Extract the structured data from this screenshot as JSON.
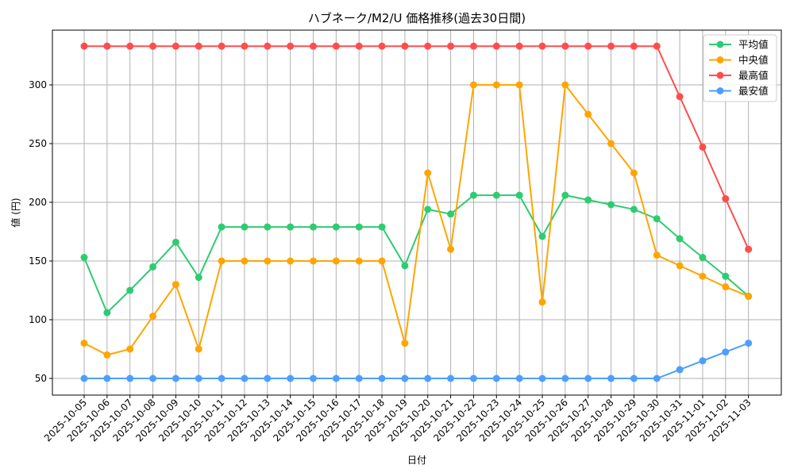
{
  "chart_data": {
    "type": "line",
    "title": "ハブネーク/M2/U 価格推移(過去30日間)",
    "xlabel": "日付",
    "ylabel": "値 (円)",
    "ylim": [
      35,
      345
    ],
    "yticks": [
      50,
      100,
      150,
      200,
      250,
      300
    ],
    "grid": true,
    "legend_position": "upper right",
    "x": [
      "2025-10-05",
      "2025-10-06",
      "2025-10-07",
      "2025-10-08",
      "2025-10-09",
      "2025-10-10",
      "2025-10-11",
      "2025-10-12",
      "2025-10-13",
      "2025-10-14",
      "2025-10-15",
      "2025-10-16",
      "2025-10-17",
      "2025-10-18",
      "2025-10-19",
      "2025-10-20",
      "2025-10-21",
      "2025-10-22",
      "2025-10-23",
      "2025-10-24",
      "2025-10-25",
      "2025-10-26",
      "2025-10-27",
      "2025-10-28",
      "2025-10-29",
      "2025-10-30",
      "2025-10-31",
      "2025-11-01",
      "2025-11-02",
      "2025-11-03"
    ],
    "series": [
      {
        "name": "平均値",
        "color": "#2ecc71",
        "values": [
          153,
          106,
          125,
          145,
          166,
          136,
          179,
          179,
          179,
          179,
          179,
          179,
          179,
          179,
          146,
          194,
          190,
          206,
          206,
          206,
          171,
          206,
          202,
          198,
          194,
          186,
          169,
          153,
          137,
          120
        ]
      },
      {
        "name": "中央値",
        "color": "#ffa500",
        "values": [
          80,
          70,
          75,
          103,
          130,
          75,
          150,
          150,
          150,
          150,
          150,
          150,
          150,
          150,
          80,
          225,
          160,
          300,
          300,
          300,
          115,
          300,
          275,
          250,
          225,
          155,
          146,
          137,
          128,
          120
        ]
      },
      {
        "name": "最高値",
        "color": "#ff4d4d",
        "values": [
          333,
          333,
          333,
          333,
          333,
          333,
          333,
          333,
          333,
          333,
          333,
          333,
          333,
          333,
          333,
          333,
          333,
          333,
          333,
          333,
          333,
          333,
          333,
          333,
          333,
          333,
          290,
          247,
          203,
          160
        ]
      },
      {
        "name": "最安値",
        "color": "#4d9fff",
        "values": [
          50,
          50,
          50,
          50,
          50,
          50,
          50,
          50,
          50,
          50,
          50,
          50,
          50,
          50,
          50,
          50,
          50,
          50,
          50,
          50,
          50,
          50,
          50,
          50,
          50,
          50,
          57.5,
          65,
          72.5,
          80
        ]
      }
    ]
  }
}
